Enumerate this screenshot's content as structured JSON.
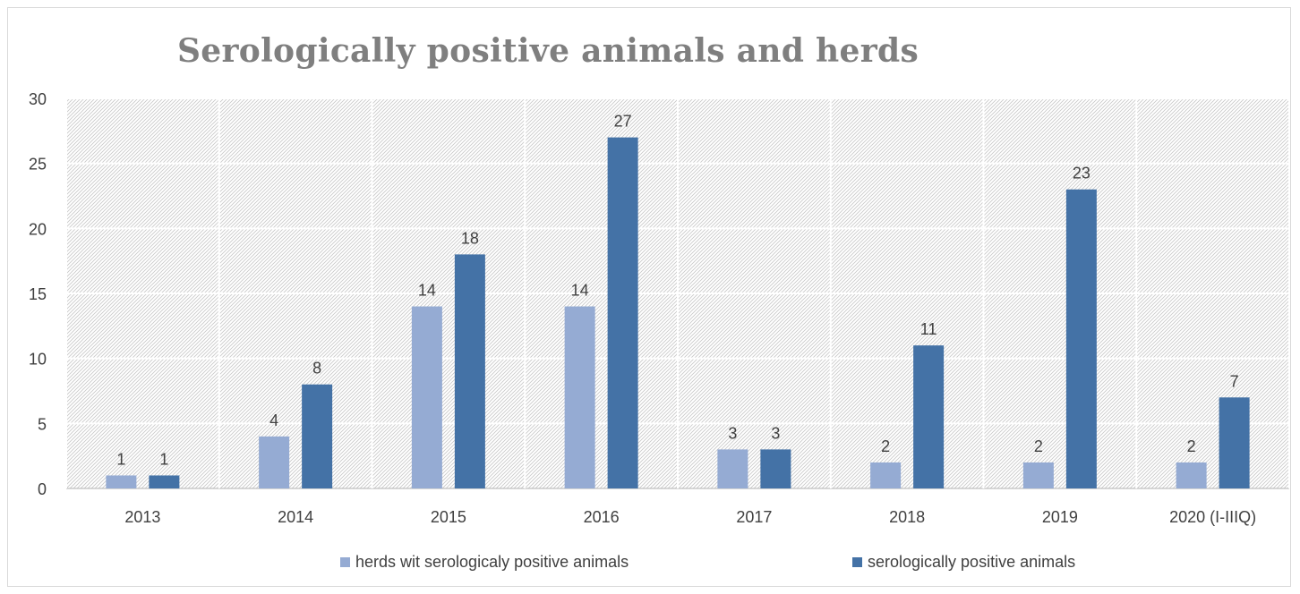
{
  "chart_data": {
    "type": "bar",
    "title": "Serologically positive animals and herds",
    "xlabel": "",
    "ylabel": "",
    "categories": [
      "2013",
      "2014",
      "2015",
      "2016",
      "2017",
      "2018",
      "2019",
      "2020 (I-IIIQ)"
    ],
    "series": [
      {
        "name": "herds wit serologicaly positive animals",
        "values": [
          1,
          4,
          14,
          14,
          3,
          2,
          2,
          2
        ],
        "color": "#95abd3"
      },
      {
        "name": "serologically positive animals",
        "values": [
          1,
          8,
          18,
          27,
          3,
          11,
          23,
          7
        ],
        "color": "#4472a6"
      }
    ],
    "ylim": [
      0,
      30
    ],
    "yticks": [
      0,
      5,
      10,
      15,
      20,
      25,
      30
    ],
    "grid": true,
    "legend_position": "bottom",
    "data_labels": true
  }
}
